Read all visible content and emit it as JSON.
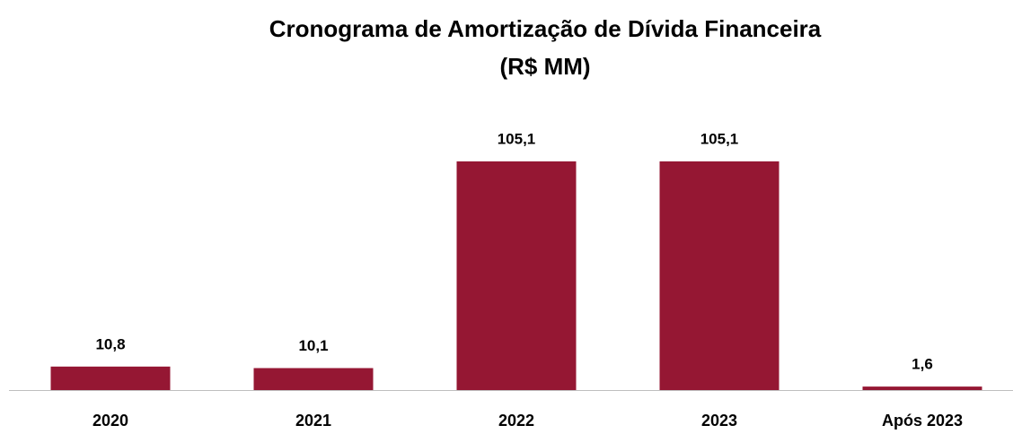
{
  "chart_data": {
    "type": "bar",
    "title": "Cronograma de Amortização de Dívida Financeira",
    "subtitle": "(R$ MM)",
    "categories": [
      "2020",
      "2021",
      "2022",
      "2023",
      "Após 2023"
    ],
    "values": [
      10.8,
      10.1,
      105.1,
      105.1,
      1.6
    ],
    "value_labels": [
      "10,8",
      "10,1",
      "105,1",
      "105,1",
      "1,6"
    ],
    "color": "#951733"
  }
}
